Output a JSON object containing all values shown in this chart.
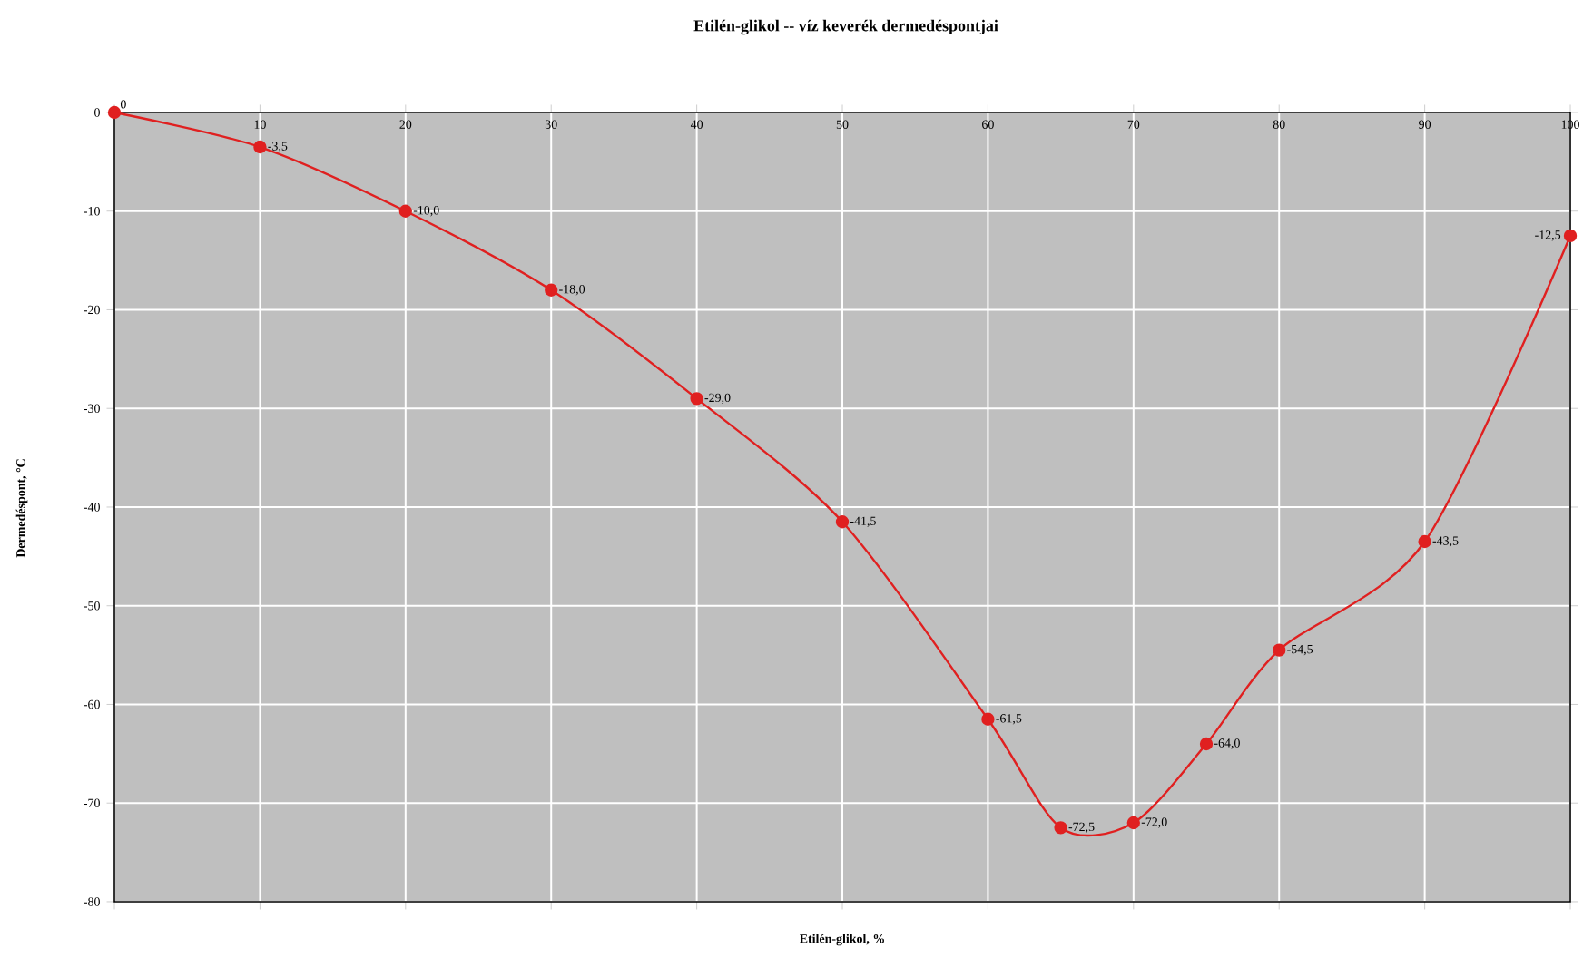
{
  "chart_data": {
    "type": "line",
    "title": "Etilén-glikol -- víz keverék dermedéspontjai",
    "xlabel": "Etilén-glikol, %",
    "ylabel": "Dermedéspont, °C",
    "x": [
      0,
      10,
      20,
      30,
      40,
      50,
      60,
      65,
      70,
      75,
      80,
      90,
      100
    ],
    "series": [
      {
        "color": "#e02020",
        "values": [
          0,
          -3.5,
          -10,
          -18,
          -29,
          -41.5,
          -61.5,
          -72.5,
          -72,
          -64,
          -54.5,
          -43.5,
          -12.5
        ],
        "value_labels": [
          "0",
          "-3,5",
          "-10,0",
          "-18,0",
          "-29,0",
          "-41,5",
          "-61,5",
          "-72,5",
          "-72,0",
          "-64,0",
          "-54,5",
          "-43,5",
          "-12,5"
        ]
      }
    ],
    "xlim": [
      0,
      100
    ],
    "ylim": [
      -80,
      0
    ],
    "xticks": [
      {
        "value": 0,
        "label": null
      },
      10,
      20,
      30,
      40,
      50,
      60,
      70,
      80,
      90,
      100
    ],
    "yticks": [
      -80,
      -70,
      -60,
      -50,
      -40,
      -30,
      -20,
      -10,
      0
    ],
    "grid": true,
    "marker": "circle",
    "line_style": "solid"
  }
}
